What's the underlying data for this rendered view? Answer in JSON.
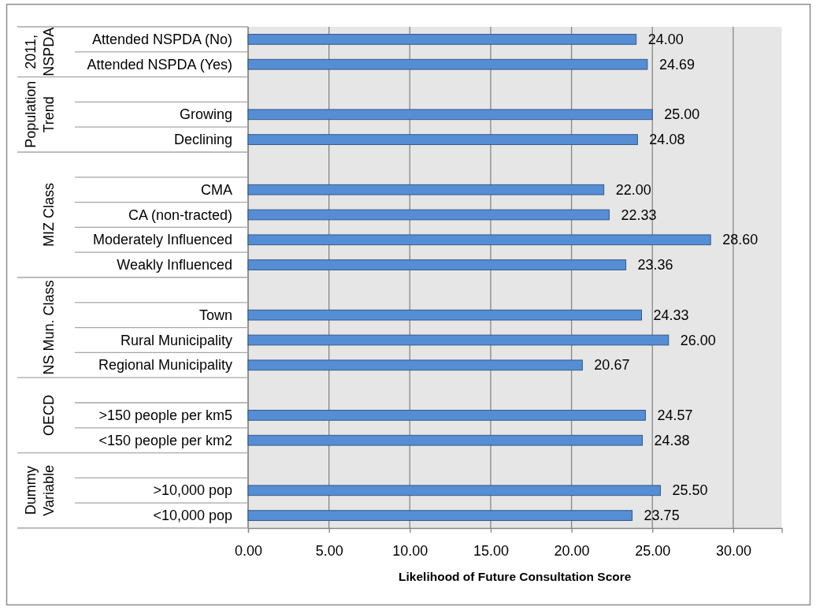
{
  "chart_data": {
    "type": "bar",
    "orientation": "horizontal",
    "xlabel": "Likelihood of Future Consultation Score",
    "categories": [
      "Attended NSPDA (No)",
      "Attended NSPDA (Yes)",
      null,
      "Growing",
      "Declining",
      null,
      "CMA",
      "CA (non-tracted)",
      "Moderately Influenced",
      "Weakly Influenced",
      null,
      "Town",
      "Rural Municipality",
      "Regional Municipality",
      null,
      ">150 people per km5",
      "<150 people per km2",
      null,
      ">10,000 pop",
      "<10,000 pop"
    ],
    "values": [
      24.0,
      24.69,
      null,
      25.0,
      24.08,
      null,
      22.0,
      22.33,
      28.6,
      23.36,
      null,
      24.33,
      26.0,
      20.67,
      null,
      24.57,
      24.38,
      null,
      25.5,
      23.75
    ],
    "value_labels": [
      "24.00",
      "24.69",
      null,
      "25.00",
      "24.08",
      null,
      "22.00",
      "22.33",
      "28.60",
      "23.36",
      null,
      "24.33",
      "26.00",
      "20.67",
      null,
      "24.57",
      "24.38",
      null,
      "25.50",
      "23.75"
    ],
    "color": "#558ed5",
    "xlim": [
      0,
      33
    ],
    "xticks": [
      {
        "value": 0,
        "label": "0.00"
      },
      {
        "value": 5,
        "label": "5.00"
      },
      {
        "value": 10,
        "label": "10.00"
      },
      {
        "value": 15,
        "label": "15.00"
      },
      {
        "value": 20,
        "label": "20.00"
      },
      {
        "value": 25,
        "label": "25.00"
      },
      {
        "value": 30,
        "label": "30.00"
      }
    ],
    "grid": "x",
    "annotations": [
      "2011, NSPDA",
      "Population Trend",
      "MIZ Class",
      "NS Mun. Class",
      "OECD",
      "Dummy Variable"
    ]
  }
}
